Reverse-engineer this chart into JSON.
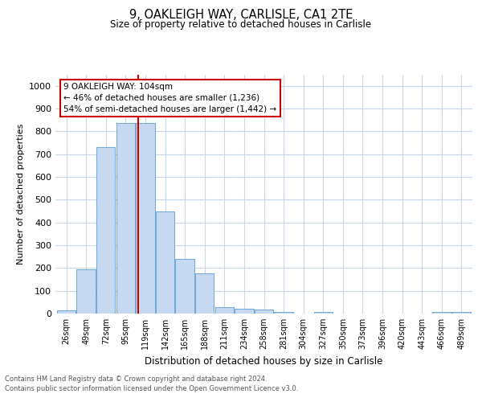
{
  "title1": "9, OAKLEIGH WAY, CARLISLE, CA1 2TE",
  "title2": "Size of property relative to detached houses in Carlisle",
  "xlabel": "Distribution of detached houses by size in Carlisle",
  "ylabel": "Number of detached properties",
  "bar_labels": [
    "26sqm",
    "49sqm",
    "72sqm",
    "95sqm",
    "119sqm",
    "142sqm",
    "165sqm",
    "188sqm",
    "211sqm",
    "234sqm",
    "258sqm",
    "281sqm",
    "304sqm",
    "327sqm",
    "350sqm",
    "373sqm",
    "396sqm",
    "420sqm",
    "443sqm",
    "466sqm",
    "489sqm"
  ],
  "bar_values": [
    15,
    195,
    730,
    835,
    835,
    448,
    240,
    175,
    30,
    22,
    17,
    7,
    0,
    8,
    0,
    0,
    0,
    0,
    0,
    8,
    8
  ],
  "bar_color": "#c7d9f0",
  "bar_edge_color": "#5b9bd5",
  "vline_x": 3.62,
  "vline_color": "#cc0000",
  "annotation_text": "9 OAKLEIGH WAY: 104sqm\n← 46% of detached houses are smaller (1,236)\n54% of semi-detached houses are larger (1,442) →",
  "annotation_box_color": "#ffffff",
  "annotation_box_edge": "#cc0000",
  "ylim": [
    0,
    1050
  ],
  "yticks": [
    0,
    100,
    200,
    300,
    400,
    500,
    600,
    700,
    800,
    900,
    1000
  ],
  "footer1": "Contains HM Land Registry data © Crown copyright and database right 2024.",
  "footer2": "Contains public sector information licensed under the Open Government Licence v3.0.",
  "bg_color": "#ffffff",
  "grid_color": "#c8d8e8"
}
